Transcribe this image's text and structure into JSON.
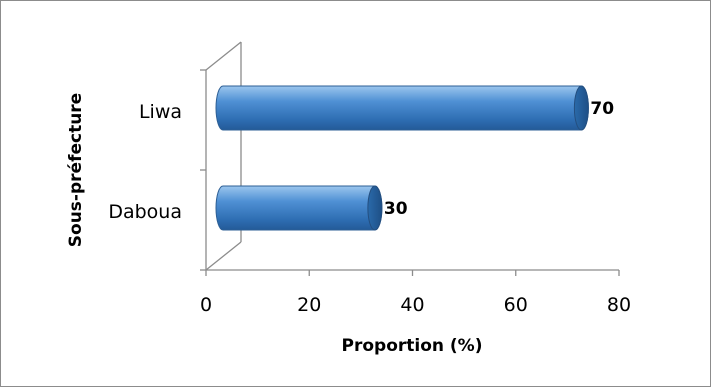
{
  "chart_data": {
    "type": "bar",
    "orientation": "horizontal",
    "categories": [
      "Daboua",
      "Liwa"
    ],
    "values": [
      30,
      70
    ],
    "data_labels": [
      "30",
      "70"
    ],
    "title": "",
    "xlabel": "Proportion (%)",
    "ylabel": "Sous-préfecture",
    "xlim": [
      0,
      80
    ],
    "x_ticks": [
      "0",
      "20",
      "40",
      "60",
      "80"
    ],
    "grid": false,
    "legend": "none",
    "bar_color": "#4f90d4"
  }
}
